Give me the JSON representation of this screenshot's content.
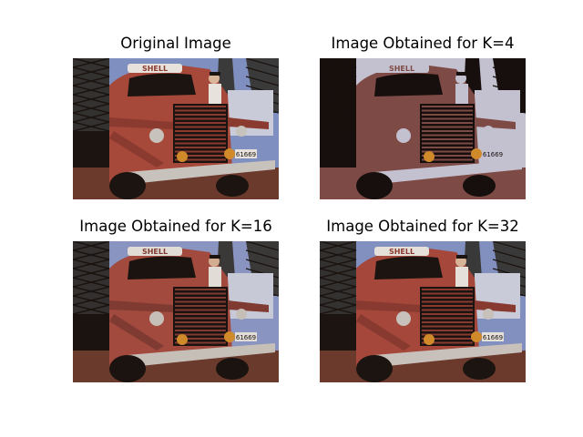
{
  "figure": {
    "panels": [
      {
        "title": "Original Image",
        "image_name": "original-truck-image"
      },
      {
        "title": "Image Obtained for K=4",
        "image_name": "quantized-k4-truck-image"
      },
      {
        "title": "Image Obtained for K=16",
        "image_name": "quantized-k16-truck-image"
      },
      {
        "title": "Image Obtained for K=32",
        "image_name": "quantized-k32-truck-image"
      }
    ],
    "license_plate": "61669",
    "sign_text": "SHELL",
    "colors": {
      "sky": "#7f8fc0",
      "truck_red": "#a6483a",
      "chrome": "#c8c2bc",
      "dark": "#1b1410",
      "ground": "#6b3a2c"
    }
  }
}
